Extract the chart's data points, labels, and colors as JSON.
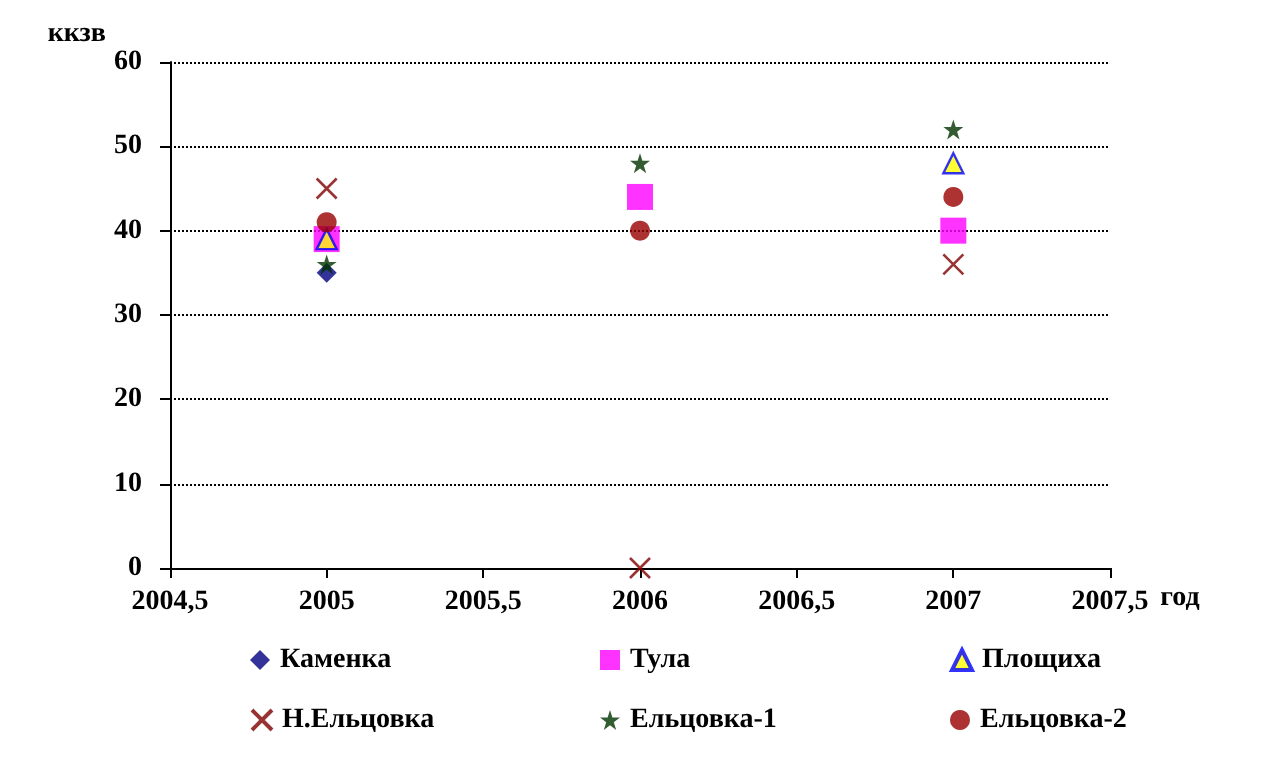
{
  "chart_data": {
    "type": "scatter",
    "xlabel": "год",
    "ylabel": "ккзв",
    "x": [
      2005,
      2006,
      2007
    ],
    "xlim": [
      2004.5,
      2007.5
    ],
    "xticks": [
      {
        "value": 2004.5,
        "label": "2004,5"
      },
      2005,
      {
        "value": 2005.5,
        "label": "2005,5"
      },
      2006,
      {
        "value": 2006.5,
        "label": "2006,5"
      },
      2007,
      {
        "value": 2007.5,
        "label": "2007,5"
      }
    ],
    "ylim": [
      0,
      60
    ],
    "yticks": [
      0,
      10,
      20,
      30,
      40,
      50,
      60
    ],
    "grid": "y",
    "legend": "bottom",
    "series": [
      {
        "name": "Каменка",
        "color": "#000080",
        "marker": "diamond",
        "values": [
          35,
          null,
          null
        ]
      },
      {
        "name": "Тула",
        "color": "#ff00ff",
        "marker": "square",
        "values": [
          39,
          44,
          40
        ]
      },
      {
        "name": "Площиха",
        "color": "#ffff00",
        "marker": "triangle",
        "values": [
          39,
          null,
          48
        ]
      },
      {
        "name": "Н.Ельцовка",
        "color": "#800000",
        "marker": "cross",
        "values": [
          45,
          0,
          36
        ]
      },
      {
        "name": "Ельцовка-1",
        "color": "#003300",
        "marker": "star",
        "values": [
          36,
          48,
          52
        ]
      },
      {
        "name": "Ельцовка-2",
        "color": "#990000",
        "marker": "circle",
        "values": [
          41,
          40,
          44
        ]
      }
    ]
  }
}
